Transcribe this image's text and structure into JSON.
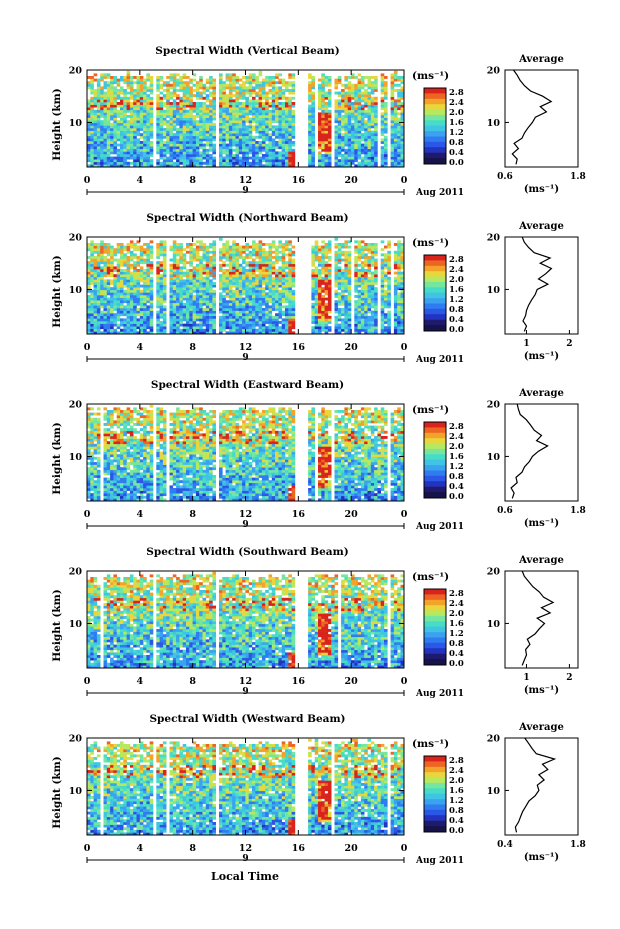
{
  "figure": {
    "x_axis_label": "Local Time",
    "date_label": "Aug 2011",
    "day_label": "9",
    "y_axis_label": "Height (km)",
    "colorbar_unit": "(ms⁻¹)",
    "average_title": "Average",
    "average_unit": "(ms⁻¹)"
  },
  "colors": {
    "scale": [
      "#1e1a6e",
      "#2233c0",
      "#2a57e6",
      "#2f7cf0",
      "#3aa2ef",
      "#3fc4e3",
      "#46dcc7",
      "#74e6a0",
      "#b6e860",
      "#e8d63c",
      "#f3a22a",
      "#ee6422",
      "#d8241c"
    ],
    "colorbar_bottom": "#16124a"
  },
  "chart_data": [
    {
      "type": "heatmap",
      "title": "Spectral Width (Vertical Beam)",
      "x_ticks": [
        "0",
        "4",
        "8",
        "12",
        "16",
        "20",
        "0"
      ],
      "xlim": [
        0,
        24
      ],
      "y_ticks": [
        "10",
        "20"
      ],
      "ylim": [
        1.5,
        20
      ],
      "colorbar_ticks": [
        "2.8",
        "2.4",
        "2.0",
        "1.6",
        "1.2",
        "0.8",
        "0.4",
        "0.0"
      ],
      "gaps_hours": [
        [
          5.1,
          5.3
        ],
        [
          9.7,
          10.1
        ],
        [
          15.7,
          16.8
        ],
        [
          17.3,
          17.5
        ],
        [
          18.5,
          18.8
        ],
        [
          22.0,
          22.2
        ],
        [
          22.8,
          23.0
        ],
        [
          23.4,
          23.6
        ]
      ],
      "profile": {
        "title": "Average",
        "x_ticks": [
          "0.6",
          "1.8"
        ],
        "xlim": [
          0.6,
          1.8
        ],
        "y_ticks": [
          "10",
          "20"
        ],
        "ylim": [
          1.5,
          20
        ],
        "height_km": [
          2,
          3,
          4,
          5,
          6,
          7,
          8,
          9,
          10,
          11,
          12,
          13,
          14,
          15,
          16,
          17,
          18,
          19,
          20
        ],
        "width_ms": [
          0.78,
          0.8,
          0.72,
          0.82,
          0.75,
          0.88,
          0.92,
          0.98,
          1.05,
          1.1,
          1.28,
          1.18,
          1.36,
          1.22,
          1.02,
          0.92,
          0.85,
          0.8,
          0.74
        ]
      }
    },
    {
      "type": "heatmap",
      "title": "Spectral Width (Northward Beam)",
      "x_ticks": [
        "0",
        "4",
        "8",
        "12",
        "16",
        "20",
        "0"
      ],
      "xlim": [
        0,
        24
      ],
      "y_ticks": [
        "10",
        "20"
      ],
      "ylim": [
        1.5,
        20
      ],
      "colorbar_ticks": [
        "2.8",
        "2.4",
        "2.0",
        "1.6",
        "1.2",
        "0.8",
        "0.4",
        "0.0"
      ],
      "gaps_hours": [
        [
          5.1,
          5.3
        ],
        [
          6.0,
          6.2
        ],
        [
          9.7,
          10.1
        ],
        [
          15.7,
          17.0
        ],
        [
          18.5,
          18.7
        ],
        [
          20.1,
          20.3
        ],
        [
          22.0,
          22.2
        ],
        [
          23.0,
          23.2
        ]
      ],
      "profile": {
        "title": "Average",
        "x_ticks": [
          "1",
          "2"
        ],
        "xlim": [
          0.5,
          2.2
        ],
        "y_ticks": [
          "10",
          "20"
        ],
        "ylim": [
          1.5,
          20
        ],
        "height_km": [
          2,
          3,
          4,
          5,
          6,
          7,
          8,
          9,
          10,
          11,
          12,
          13,
          14,
          15,
          16,
          17,
          18,
          19,
          20
        ],
        "width_ms": [
          0.95,
          1.0,
          0.92,
          0.98,
          1.0,
          1.05,
          1.12,
          1.2,
          1.25,
          1.5,
          1.28,
          1.45,
          1.58,
          1.32,
          1.55,
          1.18,
          1.05,
          0.95,
          0.9
        ]
      }
    },
    {
      "type": "heatmap",
      "title": "Spectral Width (Eastward Beam)",
      "x_ticks": [
        "0",
        "4",
        "8",
        "12",
        "16",
        "20",
        "0"
      ],
      "xlim": [
        0,
        24
      ],
      "y_ticks": [
        "10",
        "20"
      ],
      "ylim": [
        1.5,
        20
      ],
      "colorbar_ticks": [
        "2.8",
        "2.4",
        "2.0",
        "1.6",
        "1.2",
        "0.8",
        "0.4",
        "0.0"
      ],
      "gaps_hours": [
        [
          1.0,
          1.3
        ],
        [
          5.1,
          5.3
        ],
        [
          6.0,
          6.2
        ],
        [
          9.7,
          10.1
        ],
        [
          15.7,
          16.8
        ],
        [
          17.3,
          17.5
        ],
        [
          18.5,
          18.8
        ],
        [
          21.9,
          22.1
        ],
        [
          22.7,
          22.9
        ],
        [
          23.4,
          23.6
        ]
      ],
      "profile": {
        "title": "Average",
        "x_ticks": [
          "0.6",
          "1.8"
        ],
        "xlim": [
          0.6,
          1.8
        ],
        "y_ticks": [
          "10",
          "20"
        ],
        "ylim": [
          1.5,
          20
        ],
        "height_km": [
          2,
          3,
          4,
          5,
          6,
          7,
          8,
          9,
          10,
          11,
          12,
          13,
          14,
          15,
          16,
          17,
          18,
          19,
          20
        ],
        "width_ms": [
          0.72,
          0.75,
          0.7,
          0.8,
          0.78,
          0.88,
          0.92,
          1.0,
          1.05,
          1.15,
          1.3,
          1.12,
          1.2,
          1.08,
          1.02,
          0.95,
          0.85,
          0.82,
          0.8
        ]
      }
    },
    {
      "type": "heatmap",
      "title": "Spectral Width (Southward Beam)",
      "x_ticks": [
        "0",
        "4",
        "8",
        "12",
        "16",
        "20",
        "0"
      ],
      "xlim": [
        0,
        24
      ],
      "y_ticks": [
        "10",
        "20"
      ],
      "ylim": [
        1.5,
        20
      ],
      "colorbar_ticks": [
        "2.8",
        "2.4",
        "2.0",
        "1.6",
        "1.2",
        "0.8",
        "0.4",
        "0.0"
      ],
      "gaps_hours": [
        [
          1.0,
          1.3
        ],
        [
          5.1,
          5.3
        ],
        [
          9.7,
          10.1
        ],
        [
          15.7,
          16.8
        ],
        [
          17.4,
          17.6
        ],
        [
          19.1,
          19.3
        ],
        [
          21.9,
          22.1
        ],
        [
          22.8,
          23.0
        ]
      ],
      "profile": {
        "title": "Average",
        "x_ticks": [
          "1",
          "2"
        ],
        "xlim": [
          0.5,
          2.2
        ],
        "y_ticks": [
          "10",
          "20"
        ],
        "ylim": [
          1.5,
          20
        ],
        "height_km": [
          2,
          3,
          4,
          5,
          6,
          7,
          8,
          9,
          10,
          11,
          12,
          13,
          14,
          15,
          16,
          17,
          18,
          19,
          20
        ],
        "width_ms": [
          0.9,
          0.95,
          1.0,
          0.98,
          1.08,
          1.02,
          1.2,
          1.3,
          1.42,
          1.25,
          1.55,
          1.35,
          1.62,
          1.4,
          1.3,
          1.15,
          1.05,
          0.95,
          0.9
        ]
      }
    },
    {
      "type": "heatmap",
      "title": "Spectral Width (Westward Beam)",
      "x_ticks": [
        "0",
        "4",
        "8",
        "12",
        "16",
        "20",
        "0"
      ],
      "xlim": [
        0,
        24
      ],
      "y_ticks": [
        "10",
        "20"
      ],
      "ylim": [
        1.5,
        20
      ],
      "colorbar_ticks": [
        "2.8",
        "2.4",
        "2.0",
        "1.6",
        "1.2",
        "0.8",
        "0.4",
        "0.0"
      ],
      "gaps_hours": [
        [
          0.9,
          1.2
        ],
        [
          5.1,
          5.3
        ],
        [
          6.0,
          6.2
        ],
        [
          9.7,
          10.1
        ],
        [
          15.7,
          16.8
        ],
        [
          17.4,
          17.6
        ],
        [
          18.4,
          18.7
        ],
        [
          20.9,
          21.1
        ],
        [
          21.9,
          22.1
        ],
        [
          22.7,
          22.9
        ]
      ],
      "profile": {
        "title": "Average",
        "x_ticks": [
          "0.4",
          "1.8"
        ],
        "xlim": [
          0.4,
          1.8
        ],
        "y_ticks": [
          "10",
          "20"
        ],
        "ylim": [
          1.5,
          20
        ],
        "height_km": [
          2,
          3,
          4,
          5,
          6,
          7,
          8,
          9,
          10,
          11,
          12,
          13,
          14,
          15,
          16,
          17,
          18,
          19,
          20
        ],
        "width_ms": [
          0.62,
          0.6,
          0.66,
          0.7,
          0.74,
          0.8,
          0.86,
          0.98,
          1.05,
          1.02,
          1.15,
          1.05,
          1.22,
          1.12,
          1.35,
          1.0,
          0.92,
          0.85,
          0.78
        ]
      }
    }
  ]
}
